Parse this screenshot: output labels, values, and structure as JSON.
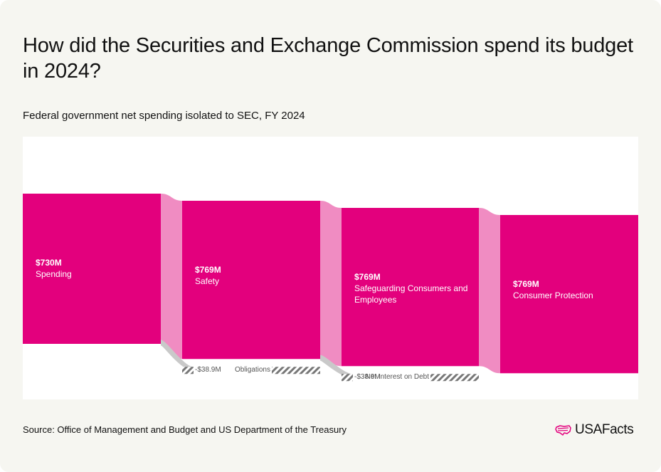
{
  "title": "How did the Securities and Exchange Commission spend its budget in 2024?",
  "subtitle": "Federal government net spending isolated to SEC, FY 2024",
  "source": "Source: Office of Management and Budget and US Department of the Treasury",
  "brand": {
    "name": "USAFacts",
    "logo_icon": "us-flag-map-icon"
  },
  "colors": {
    "node": "#e3007d",
    "link": "#f08cc2",
    "loss_link": "#c9c9c9",
    "hatch": "#777777",
    "background": "#f6f6f1"
  },
  "nodes": [
    {
      "value": "$730M",
      "name": "Spending"
    },
    {
      "value": "$769M",
      "name": "Safety"
    },
    {
      "value": "$769M",
      "name": "Safeguarding Consumers and Employees"
    },
    {
      "value": "$769M",
      "name": "Consumer Protection"
    }
  ],
  "losses": [
    {
      "value": "-$38.9M",
      "name": "Obligations"
    },
    {
      "value": "-$38.9M",
      "name": "Net Interest on Debt"
    }
  ],
  "chart_data": {
    "type": "sankey",
    "title": "How did the Securities and Exchange Commission spend its budget in 2024?",
    "subtitle": "Federal government net spending isolated to SEC, FY 2024",
    "units": "USD millions",
    "nodes": [
      {
        "name": "Spending",
        "value": 730,
        "label": "$730M"
      },
      {
        "name": "Safety",
        "value": 769,
        "label": "$769M"
      },
      {
        "name": "Safeguarding Consumers and Employees",
        "value": 769,
        "label": "$769M"
      },
      {
        "name": "Consumer Protection",
        "value": 769,
        "label": "$769M"
      }
    ],
    "flows": [
      {
        "from": "Spending",
        "to": "Safety"
      },
      {
        "from": "Safety",
        "to": "Safeguarding Consumers and Employees"
      },
      {
        "from": "Safeguarding Consumers and Employees",
        "to": "Consumer Protection"
      }
    ],
    "negative_adjustments": [
      {
        "stage": "Spending",
        "name": "Obligations",
        "value": -38.9,
        "label": "-$38.9M"
      },
      {
        "stage": "Safety",
        "name": "Net Interest on Debt",
        "value": -38.9,
        "label": "-$38.9M"
      }
    ]
  }
}
